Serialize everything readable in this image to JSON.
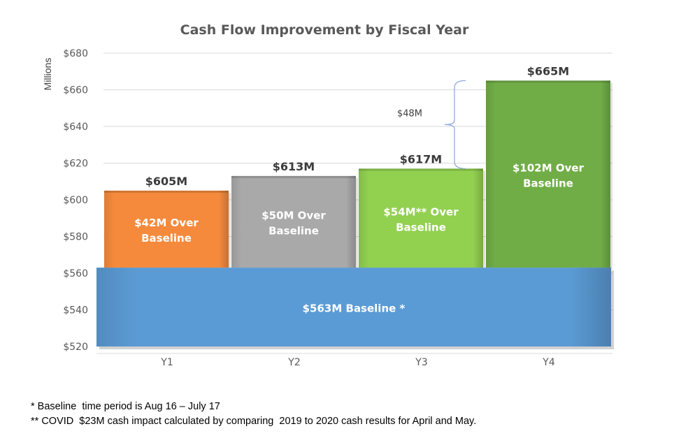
{
  "chart_data": {
    "type": "bar",
    "title": "Cash Flow Improvement by Fiscal Year",
    "ylabel": "Millions",
    "ylim": [
      520,
      680
    ],
    "yticks": [
      "$520",
      "$540",
      "$560",
      "$580",
      "$600",
      "$620",
      "$640",
      "$660",
      "$680"
    ],
    "categories": [
      "Y1",
      "Y2",
      "Y3",
      "Y4"
    ],
    "baseline": {
      "value": 563,
      "label": "$563M Baseline *",
      "color": "#5b9bd5"
    },
    "totals": [
      605,
      613,
      617,
      665
    ],
    "total_labels": [
      "$605M",
      "$613M",
      "$617M",
      "$665M"
    ],
    "increments": [
      42,
      50,
      54,
      102
    ],
    "increment_labels": [
      [
        "$42M Over",
        "Baseline"
      ],
      [
        "$50M Over",
        "Baseline"
      ],
      [
        "$54M** Over",
        "Baseline"
      ],
      [
        "$102M Over",
        "Baseline"
      ]
    ],
    "colors": [
      "#f58a3c",
      "#a9a9a9",
      "#92d050",
      "#70ad47"
    ],
    "grid": true,
    "annotation": {
      "label": "$48M",
      "from": 617,
      "to": 665
    }
  },
  "footnotes": [
    "* Baseline  time period is Aug 16 – July 17",
    "** COVID  $23M cash impact calculated by comparing  2019 to 2020 cash results for April and May."
  ]
}
